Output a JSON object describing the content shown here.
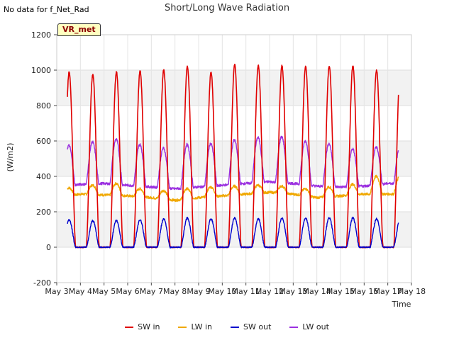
{
  "note": "No data for f_Net_Rad",
  "badge": "VR_met",
  "chart_data": {
    "type": "line",
    "title": "Short/Long Wave Radiation",
    "xlabel": "Time",
    "ylabel": "(W/m2)",
    "ylim": [
      -200,
      1200
    ],
    "yticks": [
      -200,
      0,
      200,
      400,
      600,
      800,
      1000,
      1200
    ],
    "xlim": [
      3,
      18
    ],
    "xticks": [
      {
        "v": 3,
        "label": "May 3"
      },
      {
        "v": 4,
        "label": "May 4"
      },
      {
        "v": 5,
        "label": "May 5"
      },
      {
        "v": 6,
        "label": "May 6"
      },
      {
        "v": 7,
        "label": "May 7"
      },
      {
        "v": 8,
        "label": "May 8"
      },
      {
        "v": 9,
        "label": "May 9"
      },
      {
        "v": 10,
        "label": "May 10"
      },
      {
        "v": 11,
        "label": "May 11"
      },
      {
        "v": 12,
        "label": "May 12"
      },
      {
        "v": 13,
        "label": "May 13"
      },
      {
        "v": 14,
        "label": "May 14"
      },
      {
        "v": 15,
        "label": "May 15"
      },
      {
        "v": 16,
        "label": "May 16"
      },
      {
        "v": 17,
        "label": "May 17"
      },
      {
        "v": 18,
        "label": "May 18"
      }
    ],
    "grid": true,
    "legend_position": "bottom",
    "series": [
      {
        "name": "SW in",
        "color": "#e00000",
        "day_peaks": [
          990,
          975,
          990,
          995,
          1000,
          1020,
          990,
          1030,
          1025,
          1025,
          1020,
          1025,
          1025,
          1000
        ]
      },
      {
        "name": "LW in",
        "color": "#f0a800",
        "day_peaks": [
          335,
          350,
          360,
          330,
          320,
          330,
          340,
          345,
          350,
          345,
          330,
          340,
          355,
          400
        ],
        "night_values": [
          280,
          300,
          295,
          290,
          280,
          265,
          280,
          290,
          300,
          310,
          300,
          280,
          290,
          300,
          300
        ]
      },
      {
        "name": "SW out",
        "color": "#0000cc",
        "day_peaks": [
          155,
          150,
          150,
          155,
          160,
          165,
          160,
          165,
          160,
          165,
          165,
          165,
          165,
          160
        ]
      },
      {
        "name": "LW out",
        "color": "#9b30e0",
        "day_peaks": [
          575,
          595,
          610,
          580,
          560,
          580,
          585,
          605,
          620,
          625,
          600,
          585,
          555,
          565
        ],
        "night_values": [
          340,
          355,
          360,
          350,
          340,
          330,
          340,
          350,
          360,
          370,
          360,
          345,
          340,
          345,
          360
        ]
      }
    ],
    "x_start": 3.45,
    "x_end": 17.45,
    "sunrise_offset": 0.25,
    "sunset_offset": 0.8
  }
}
